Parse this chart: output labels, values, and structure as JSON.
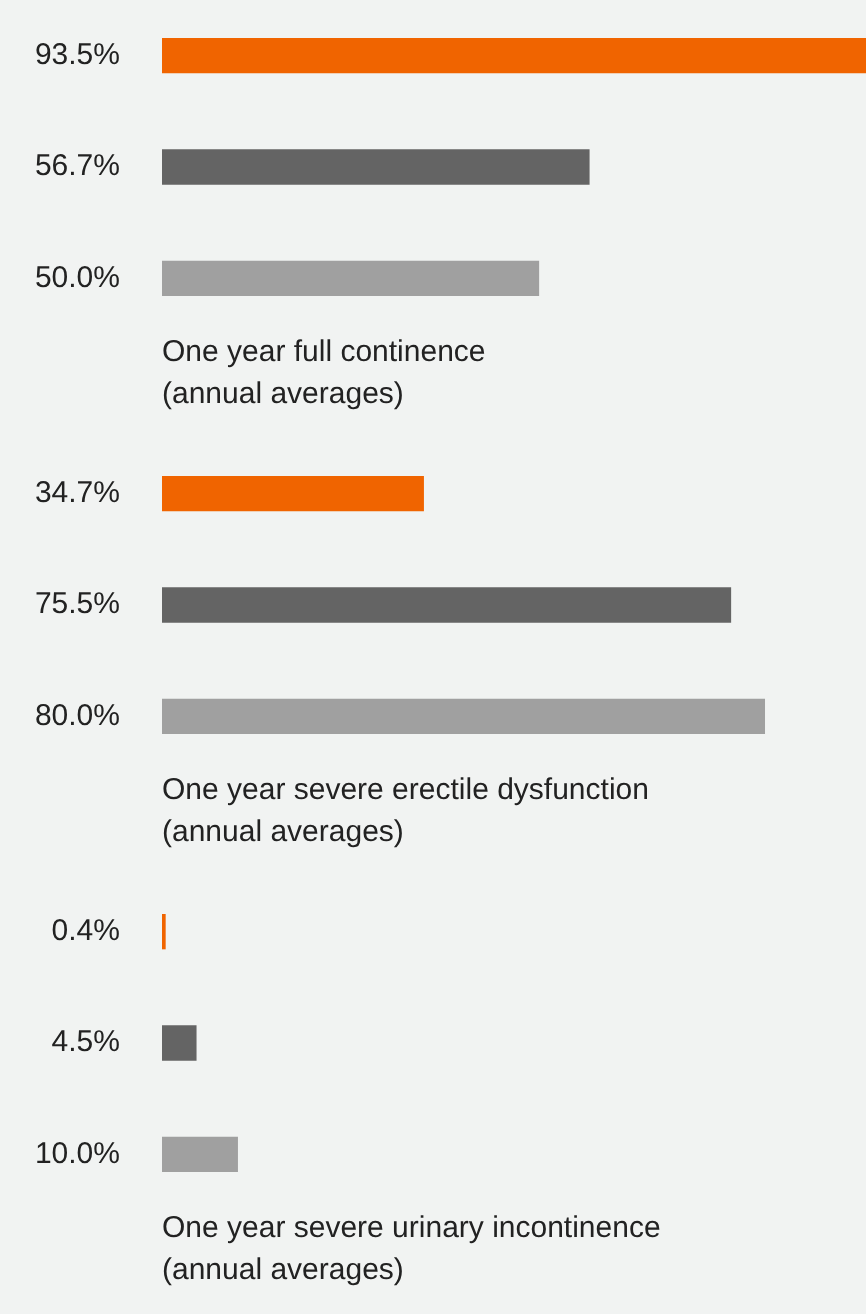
{
  "chart_data": [
    {
      "type": "bar",
      "orientation": "horizontal",
      "categories": [
        null,
        null,
        null
      ],
      "values": [
        93.5,
        56.7,
        50.0
      ],
      "value_labels": [
        "93.5%",
        "56.7%",
        "50.0%"
      ],
      "colors": [
        "#f06400",
        "#646464",
        "#a0a0a0"
      ],
      "xlabel": "One year full continence\n(annual averages)"
    },
    {
      "type": "bar",
      "orientation": "horizontal",
      "categories": [
        null,
        null,
        null
      ],
      "values": [
        34.7,
        75.5,
        80.0
      ],
      "value_labels": [
        "34.7%",
        "75.5%",
        "80.0%"
      ],
      "colors": [
        "#f06400",
        "#646464",
        "#a0a0a0"
      ],
      "xlabel": "One year severe erectile dysfunction\n(annual averages)"
    },
    {
      "type": "bar",
      "orientation": "horizontal",
      "categories": [
        null,
        null,
        null
      ],
      "values": [
        0.4,
        4.5,
        10.0
      ],
      "value_labels": [
        "0.4%",
        "4.5%",
        "10.0%"
      ],
      "colors": [
        "#f06400",
        "#646464",
        "#a0a0a0"
      ],
      "xlabel": "One year severe urinary incontinence\n(annual averages)"
    }
  ]
}
